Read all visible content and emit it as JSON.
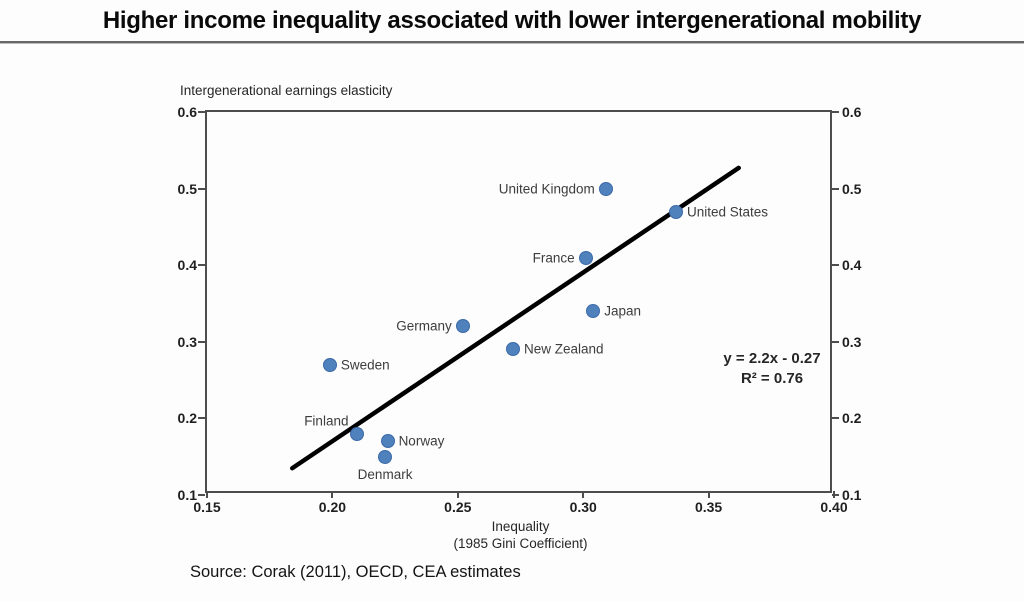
{
  "title": "Higher income inequality associated with lower intergenerational mobility",
  "source": "Source: Corak (2011), OECD, CEA estimates",
  "chart_data": {
    "type": "scatter",
    "title": "Higher income inequality associated with lower intergenerational mobility",
    "y_axis_title": "Intergenerational earnings elasticity",
    "x_axis_title_line1": "Inequality",
    "x_axis_title_line2": "(1985 Gini Coefficient)",
    "xlim": [
      0.15,
      0.4
    ],
    "ylim": [
      0.1,
      0.6
    ],
    "grid": false,
    "legend": "none",
    "point_color": "#4f81bd",
    "point_border_color": "#3a6aa8",
    "axis_color": "#4d4d4d",
    "x_ticks": [
      {
        "v": 0.15,
        "label": "0.15"
      },
      {
        "v": 0.2,
        "label": "0.20"
      },
      {
        "v": 0.25,
        "label": "0.25"
      },
      {
        "v": 0.3,
        "label": "0.30"
      },
      {
        "v": 0.35,
        "label": "0.35"
      },
      {
        "v": 0.4,
        "label": "0.40"
      }
    ],
    "y_ticks": [
      {
        "v": 0.6,
        "label": "0.6"
      },
      {
        "v": 0.5,
        "label": "0.5"
      },
      {
        "v": 0.4,
        "label": "0.4"
      },
      {
        "v": 0.3,
        "label": "0.3"
      },
      {
        "v": 0.2,
        "label": "0.2"
      },
      {
        "v": 0.1,
        "label": "0.1"
      }
    ],
    "points": [
      {
        "label": "Sweden",
        "x": 0.199,
        "y": 0.27,
        "label_pos": "right"
      },
      {
        "label": "Finland",
        "x": 0.21,
        "y": 0.18,
        "label_pos": "left-up"
      },
      {
        "label": "Norway",
        "x": 0.222,
        "y": 0.17,
        "label_pos": "right"
      },
      {
        "label": "Denmark",
        "x": 0.221,
        "y": 0.15,
        "label_pos": "below"
      },
      {
        "label": "Germany",
        "x": 0.252,
        "y": 0.32,
        "label_pos": "left"
      },
      {
        "label": "New Zealand",
        "x": 0.272,
        "y": 0.29,
        "label_pos": "right"
      },
      {
        "label": "France",
        "x": 0.301,
        "y": 0.41,
        "label_pos": "left"
      },
      {
        "label": "Japan",
        "x": 0.304,
        "y": 0.34,
        "label_pos": "right"
      },
      {
        "label": "United Kingdom",
        "x": 0.309,
        "y": 0.5,
        "label_pos": "left"
      },
      {
        "label": "United States",
        "x": 0.337,
        "y": 0.47,
        "label_pos": "right"
      }
    ],
    "trendline": {
      "equation": "y = 2.2x - 0.27",
      "r_squared": "R² = 0.76",
      "color": "#000000",
      "x_start": 0.184,
      "y_start": 0.135,
      "x_end": 0.362,
      "y_end": 0.527
    }
  }
}
